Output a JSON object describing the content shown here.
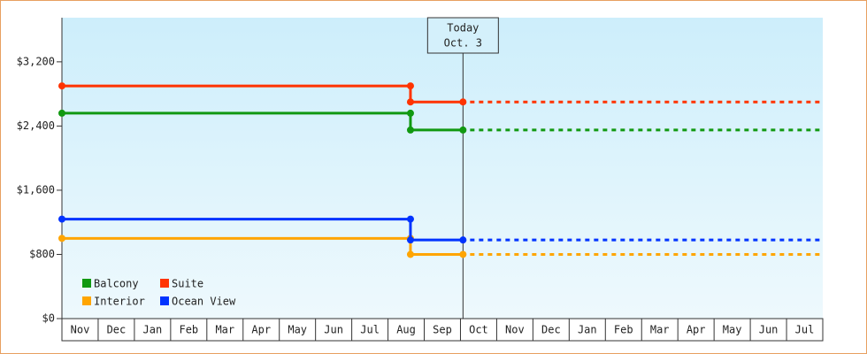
{
  "chart_data": {
    "type": "line",
    "categories": [
      "Nov",
      "Dec",
      "Jan",
      "Feb",
      "Mar",
      "Apr",
      "May",
      "Jun",
      "Jul",
      "Aug",
      "Sep",
      "Oct",
      "Nov",
      "Dec",
      "Jan",
      "Feb",
      "Mar",
      "Apr",
      "May",
      "Jun",
      "Jul"
    ],
    "xlim": [
      0,
      21
    ],
    "ylim": [
      0,
      3750
    ],
    "yticks": [
      {
        "value": 0,
        "label": "$0"
      },
      {
        "value": 800,
        "label": "$800"
      },
      {
        "value": 1600,
        "label": "$1,600"
      },
      {
        "value": 2400,
        "label": "$2,400"
      },
      {
        "value": 3200,
        "label": "$3,200"
      }
    ],
    "series": [
      {
        "name": "Balcony",
        "color": "#119911",
        "x": [
          0,
          9.62,
          9.62,
          11.07
        ],
        "values": [
          2560,
          2560,
          2350,
          2350
        ]
      },
      {
        "name": "Suite",
        "color": "#ff3300",
        "x": [
          0,
          9.62,
          9.62,
          11.07
        ],
        "values": [
          2900,
          2900,
          2700,
          2700
        ]
      },
      {
        "name": "Interior",
        "color": "#ffa500",
        "x": [
          0,
          9.62,
          9.62,
          11.07
        ],
        "values": [
          1000,
          1000,
          800,
          800
        ]
      },
      {
        "name": "Ocean View",
        "color": "#0033ff",
        "x": [
          0,
          9.62,
          9.62,
          11.07
        ],
        "values": [
          1240,
          1240,
          980,
          980
        ]
      }
    ],
    "annotation": {
      "x": 11.07,
      "lines": [
        "Today",
        "Oct. 3"
      ]
    }
  }
}
